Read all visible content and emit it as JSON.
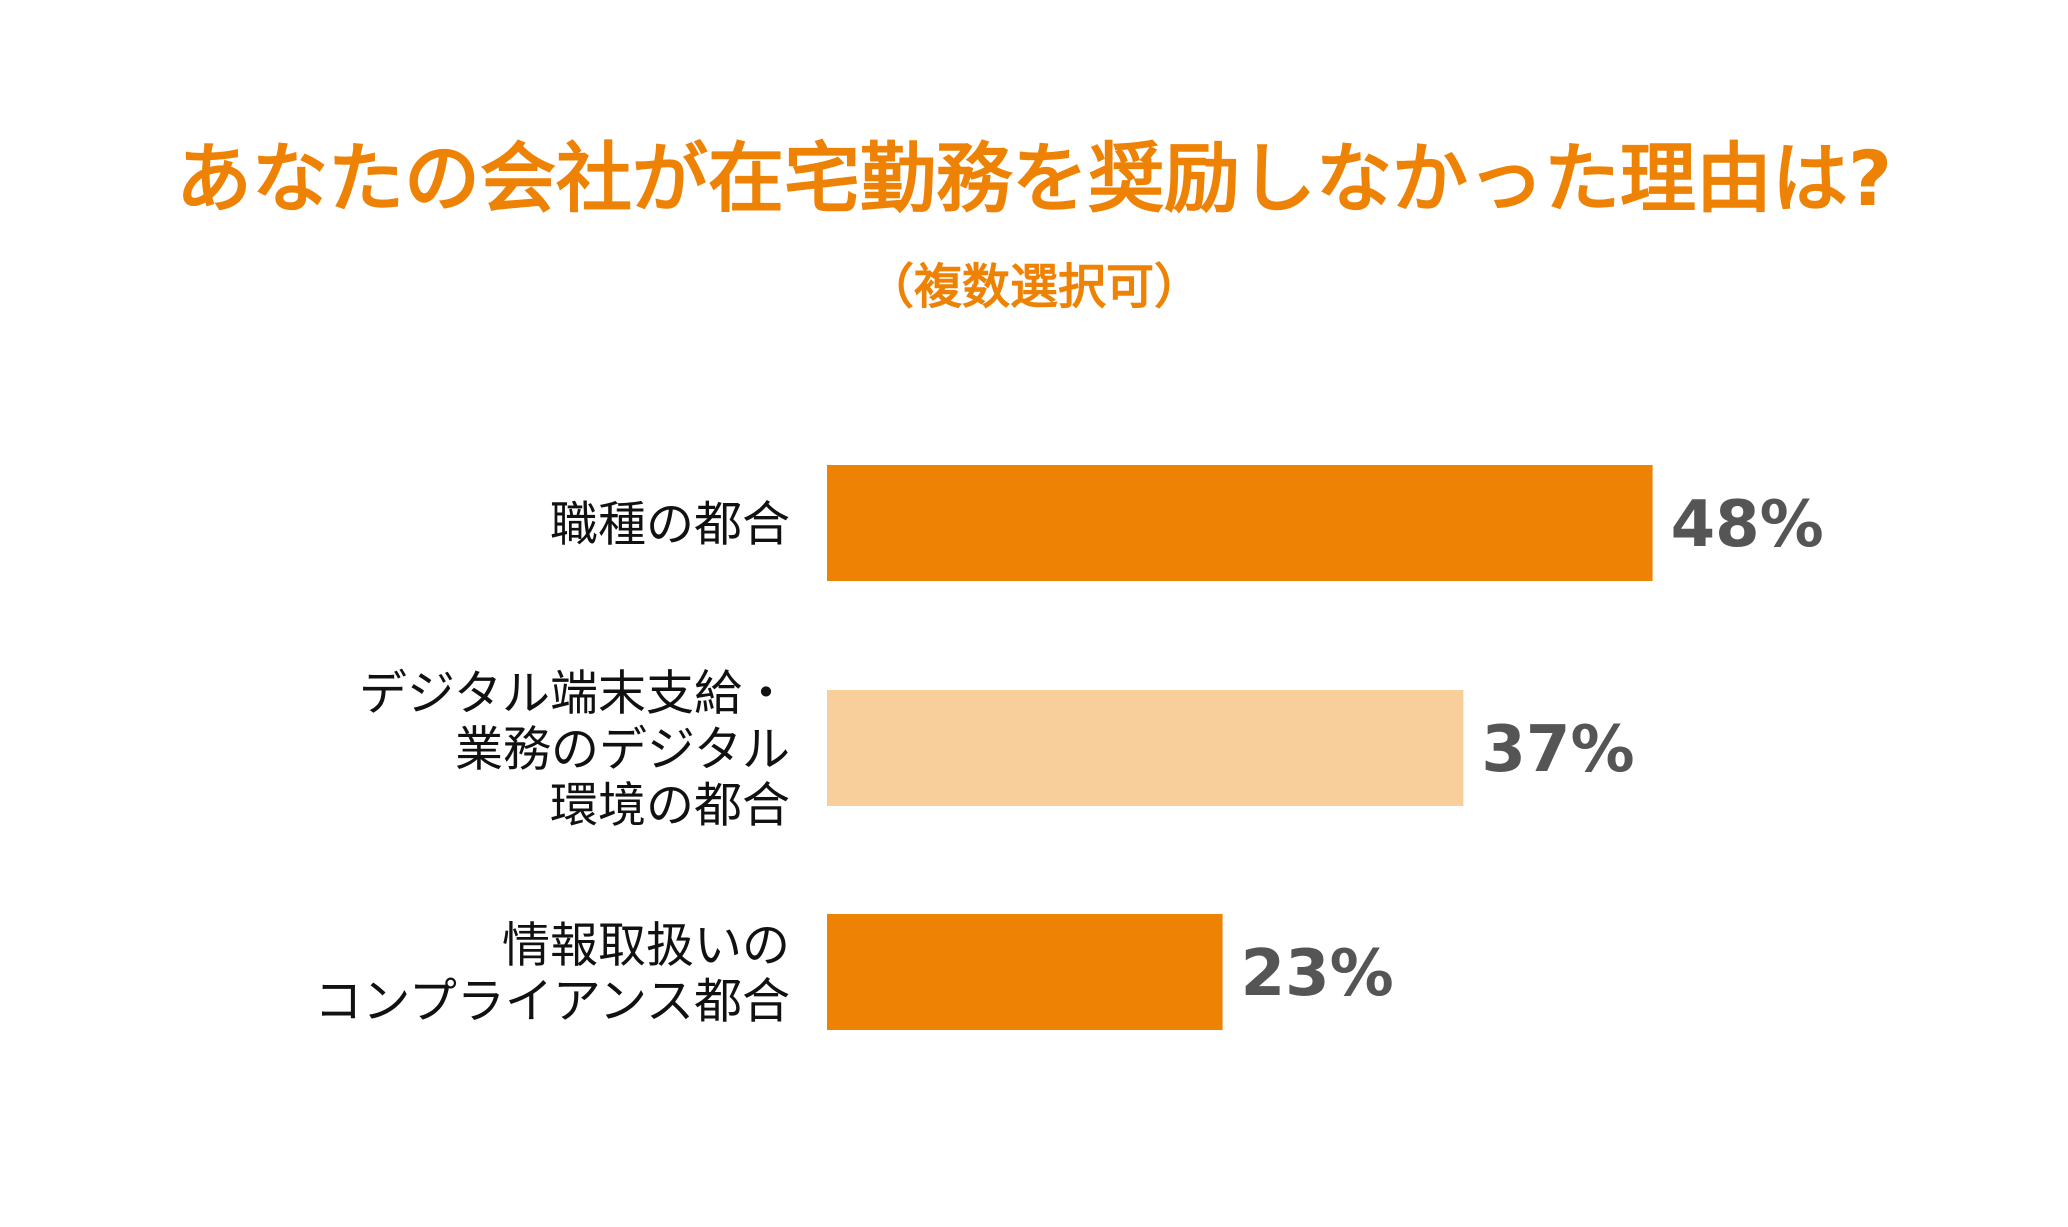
{
  "chart_data": {
    "type": "bar",
    "orientation": "horizontal",
    "title": "あなたの会社が在宅勤務を奨励しなかった理由は?",
    "subtitle": "（複数選択可）",
    "categories": [
      [
        "職種の都合"
      ],
      [
        "デジタル端末支給・",
        "業務のデジタル",
        "環境の都合"
      ],
      [
        "情報取扱いの",
        "コンプライアンス都合"
      ]
    ],
    "values": [
      48,
      37,
      23
    ],
    "value_labels": [
      "48%",
      "37%",
      "23%"
    ],
    "unit": "%",
    "xlim": [
      0,
      100
    ],
    "grid": false,
    "legend": "none",
    "colors": {
      "title": "#EE8205",
      "bars": [
        "#EE8205",
        "#F8CE9B",
        "#EE8205"
      ],
      "value_text": "#555555",
      "category_text": "#111111"
    }
  }
}
